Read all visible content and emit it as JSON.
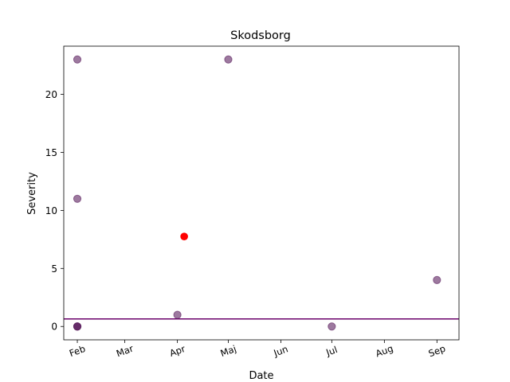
{
  "chart_data": {
    "type": "scatter",
    "title": "Skodsborg",
    "xlabel": "Date",
    "ylabel": "Severity",
    "x_ticks": [
      {
        "date": "2021-02-01",
        "label": "Feb"
      },
      {
        "date": "2021-03-01",
        "label": "Mar"
      },
      {
        "date": "2021-04-01",
        "label": "Apr"
      },
      {
        "date": "2021-05-01",
        "label": "Maj"
      },
      {
        "date": "2021-06-01",
        "label": "Jun"
      },
      {
        "date": "2021-07-01",
        "label": "Jul"
      },
      {
        "date": "2021-08-01",
        "label": "Aug"
      },
      {
        "date": "2021-09-01",
        "label": "Sep"
      }
    ],
    "y_ticks": [
      0,
      5,
      10,
      15,
      20
    ],
    "xlim": [
      "2021-01-24",
      "2021-09-14"
    ],
    "ylim": [
      -1.15,
      24.15
    ],
    "grid": false,
    "point_color": "#5b1f5f",
    "point_opacity": 0.6,
    "points": [
      {
        "date": "2021-02-01",
        "value": 23
      },
      {
        "date": "2021-02-01",
        "value": 11
      },
      {
        "date": "2021-02-01",
        "value": 0
      },
      {
        "date": "2021-02-01",
        "value": 0
      },
      {
        "date": "2021-02-01",
        "value": 0
      },
      {
        "date": "2021-04-01",
        "value": 1
      },
      {
        "date": "2021-05-01",
        "value": 23
      },
      {
        "date": "2021-07-01",
        "value": 0
      },
      {
        "date": "2021-09-01",
        "value": 4
      }
    ],
    "highlight_color": "#ff0000",
    "highlight_point": {
      "date": "2021-04-05",
      "value": 7.75
    },
    "hline_color": "#6a006a",
    "hline_value": 0.65
  }
}
